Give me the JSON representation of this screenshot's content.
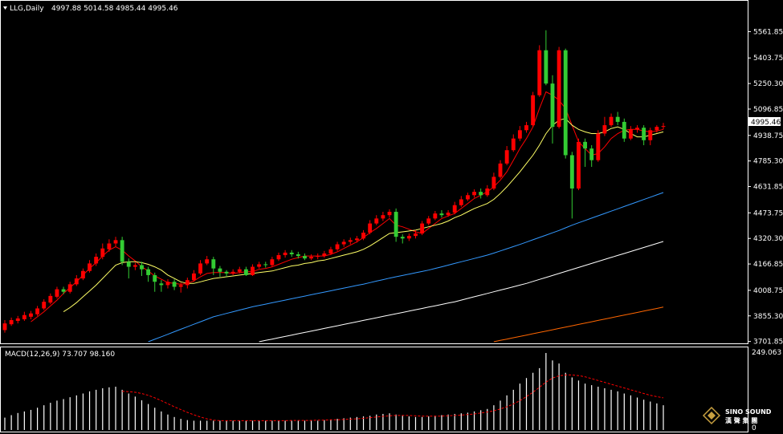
{
  "window": {
    "symbol_label": "LLG,Daily",
    "ohlc_label": "4997.88 5014.58 4985.44 4995.46",
    "macd_label": "MACD(12,26,9) 73.707 98.160",
    "macd_axis_top": "249.063",
    "macd_axis_bottom": "0",
    "brand": "SINO SOUND",
    "brand_sub": "漢 聲 集 團"
  },
  "colors": {
    "up": "#ff0000",
    "down": "#33cc33",
    "ma_red": "#ff0000",
    "ma_yellow": "#ffff66",
    "ma_blue": "#3399ff",
    "ma_white": "#ffffff",
    "ma_orange": "#ff6600",
    "macd_bar": "#ffffff",
    "macd_signal": "#ff0000",
    "current_price_bg": "#ffffff"
  },
  "chart_data": {
    "type": "candlestick",
    "y_ticks": [
      "5561.85",
      "5403.75",
      "5250.30",
      "5096.85",
      "4938.75",
      "4785.30",
      "4631.85",
      "4473.75",
      "4320.30",
      "4166.85",
      "4008.75",
      "3855.30",
      "3701.85"
    ],
    "ylim": [
      3700,
      5665
    ],
    "current_price": "4995.46",
    "candles": [
      [
        3770,
        3810,
        3755,
        3830
      ],
      [
        3805,
        3830,
        3795,
        3845
      ],
      [
        3825,
        3840,
        3810,
        3855
      ],
      [
        3835,
        3860,
        3825,
        3880
      ],
      [
        3850,
        3870,
        3835,
        3885
      ],
      [
        3865,
        3900,
        3855,
        3915
      ],
      [
        3900,
        3940,
        3890,
        3955
      ],
      [
        3935,
        3975,
        3925,
        3990
      ],
      [
        3970,
        4015,
        3960,
        4030
      ],
      [
        4015,
        4000,
        3985,
        4030
      ],
      [
        4000,
        4045,
        3990,
        4060
      ],
      [
        4045,
        4080,
        4035,
        4100
      ],
      [
        4080,
        4125,
        4070,
        4140
      ],
      [
        4125,
        4170,
        4115,
        4190
      ],
      [
        4170,
        4210,
        4155,
        4230
      ],
      [
        4210,
        4260,
        4195,
        4290
      ],
      [
        4255,
        4290,
        4240,
        4315
      ],
      [
        4290,
        4310,
        4270,
        4330
      ],
      [
        4310,
        4180,
        4160,
        4330
      ],
      [
        4180,
        4150,
        4080,
        4200
      ],
      [
        4150,
        4160,
        4130,
        4175
      ],
      [
        4160,
        4135,
        4095,
        4180
      ],
      [
        4135,
        4100,
        4060,
        4150
      ],
      [
        4100,
        4060,
        4000,
        4115
      ],
      [
        4050,
        4040,
        4000,
        4070
      ],
      [
        4040,
        4060,
        4020,
        4075
      ],
      [
        4060,
        4030,
        4010,
        4075
      ],
      [
        4030,
        4040,
        3995,
        4055
      ],
      [
        4040,
        4070,
        4020,
        4085
      ],
      [
        4070,
        4110,
        4060,
        4130
      ],
      [
        4110,
        4170,
        4100,
        4190
      ],
      [
        4170,
        4195,
        4160,
        4215
      ],
      [
        4195,
        4140,
        4100,
        4210
      ],
      [
        4140,
        4120,
        4090,
        4155
      ],
      [
        4120,
        4110,
        4090,
        4130
      ],
      [
        4110,
        4120,
        4100,
        4135
      ],
      [
        4120,
        4135,
        4110,
        4150
      ],
      [
        4135,
        4100,
        4095,
        4150
      ],
      [
        4100,
        4150,
        4095,
        4165
      ],
      [
        4150,
        4165,
        4140,
        4180
      ],
      [
        4165,
        4160,
        4145,
        4180
      ],
      [
        4160,
        4195,
        4150,
        4210
      ],
      [
        4195,
        4220,
        4185,
        4235
      ],
      [
        4220,
        4235,
        4205,
        4250
      ],
      [
        4235,
        4225,
        4210,
        4250
      ],
      [
        4225,
        4215,
        4200,
        4240
      ],
      [
        4215,
        4200,
        4190,
        4230
      ],
      [
        4200,
        4210,
        4190,
        4225
      ],
      [
        4210,
        4215,
        4195,
        4230
      ],
      [
        4215,
        4230,
        4205,
        4245
      ],
      [
        4230,
        4255,
        4220,
        4270
      ],
      [
        4255,
        4285,
        4245,
        4300
      ],
      [
        4285,
        4300,
        4270,
        4315
      ],
      [
        4300,
        4310,
        4285,
        4325
      ],
      [
        4310,
        4320,
        4295,
        4335
      ],
      [
        4320,
        4355,
        4310,
        4370
      ],
      [
        4355,
        4410,
        4345,
        4430
      ],
      [
        4410,
        4440,
        4400,
        4460
      ],
      [
        4440,
        4460,
        4425,
        4480
      ],
      [
        4460,
        4480,
        4445,
        4495
      ],
      [
        4480,
        4330,
        4300,
        4500
      ],
      [
        4330,
        4320,
        4290,
        4345
      ],
      [
        4320,
        4335,
        4305,
        4350
      ],
      [
        4335,
        4350,
        4320,
        4370
      ],
      [
        4350,
        4410,
        4340,
        4425
      ],
      [
        4410,
        4440,
        4400,
        4455
      ],
      [
        4440,
        4470,
        4430,
        4485
      ],
      [
        4470,
        4460,
        4445,
        4490
      ],
      [
        4460,
        4475,
        4450,
        4490
      ],
      [
        4475,
        4520,
        4465,
        4540
      ],
      [
        4520,
        4555,
        4510,
        4575
      ],
      [
        4555,
        4580,
        4545,
        4595
      ],
      [
        4580,
        4600,
        4565,
        4615
      ],
      [
        4600,
        4580,
        4560,
        4620
      ],
      [
        4580,
        4620,
        4570,
        4640
      ],
      [
        4620,
        4690,
        4610,
        4715
      ],
      [
        4690,
        4770,
        4680,
        4790
      ],
      [
        4770,
        4850,
        4760,
        4875
      ],
      [
        4850,
        4920,
        4840,
        4945
      ],
      [
        4920,
        4970,
        4905,
        4995
      ],
      [
        4970,
        5000,
        4955,
        5020
      ],
      [
        5000,
        5180,
        4990,
        5200
      ],
      [
        5180,
        5450,
        5170,
        5480
      ],
      [
        5450,
        5250,
        5240,
        5570
      ],
      [
        5250,
        4990,
        4890,
        5300
      ],
      [
        4990,
        5450,
        4980,
        5470
      ],
      [
        5450,
        4820,
        4800,
        5460
      ],
      [
        4820,
        4620,
        4440,
        4840
      ],
      [
        4620,
        4900,
        4610,
        4920
      ],
      [
        4900,
        4860,
        4750,
        4920
      ],
      [
        4860,
        4790,
        4750,
        4880
      ],
      [
        4790,
        4950,
        4780,
        4970
      ],
      [
        4950,
        5000,
        4935,
        5050
      ],
      [
        5000,
        5050,
        4990,
        5070
      ],
      [
        5050,
        5020,
        5000,
        5080
      ],
      [
        5020,
        4920,
        4900,
        5040
      ],
      [
        4920,
        4975,
        4910,
        4995
      ],
      [
        4975,
        4985,
        4955,
        5000
      ],
      [
        4985,
        4910,
        4880,
        5000
      ],
      [
        4910,
        4970,
        4880,
        4985
      ],
      [
        4970,
        4990,
        4955,
        5000
      ],
      [
        4990,
        4995,
        4975,
        5014
      ]
    ],
    "ma_series": [
      {
        "color": "ma_red",
        "values": [
          null,
          null,
          null,
          null,
          3820,
          3850,
          3880,
          3915,
          3950,
          3990,
          4025,
          4060,
          4100,
          4140,
          4175,
          4215,
          4250,
          4270,
          4250,
          4215,
          4185,
          4150,
          4125,
          4095,
          4075,
          4055,
          4050,
          4045,
          4050,
          4065,
          4090,
          4110,
          4115,
          4115,
          4115,
          4110,
          4115,
          4120,
          4120,
          4135,
          4140,
          4150,
          4165,
          4180,
          4195,
          4205,
          4215,
          4215,
          4215,
          4215,
          4225,
          4240,
          4260,
          4280,
          4300,
          4325,
          4355,
          4380,
          4410,
          4440,
          4400,
          4390,
          4375,
          4360,
          4350,
          4380,
          4410,
          4440,
          4455,
          4470,
          4500,
          4530,
          4560,
          4580,
          4600,
          4630,
          4670,
          4720,
          4790,
          4860,
          4920,
          4990,
          5100,
          5200,
          5180,
          5150,
          5100,
          5000,
          4900,
          4860,
          4820,
          4830,
          4870,
          4920,
          4950,
          4970,
          4975,
          4975,
          4965,
          4960,
          4965,
          4975
        ]
      },
      {
        "color": "ma_yellow",
        "values": [
          null,
          null,
          null,
          null,
          null,
          null,
          null,
          null,
          null,
          3880,
          3905,
          3935,
          3970,
          4005,
          4040,
          4080,
          4120,
          4160,
          4175,
          4180,
          4180,
          4175,
          4165,
          4150,
          4130,
          4100,
          4080,
          4060,
          4050,
          4050,
          4060,
          4070,
          4080,
          4085,
          4090,
          4095,
          4100,
          4105,
          4110,
          4115,
          4120,
          4125,
          4135,
          4145,
          4155,
          4160,
          4170,
          4175,
          4185,
          4190,
          4200,
          4210,
          4220,
          4230,
          4240,
          4255,
          4275,
          4300,
          4325,
          4350,
          4355,
          4360,
          4365,
          4370,
          4380,
          4390,
          4400,
          4410,
          4425,
          4445,
          4460,
          4480,
          4500,
          4515,
          4530,
          4555,
          4590,
          4630,
          4675,
          4720,
          4770,
          4820,
          4880,
          4950,
          5000,
          5030,
          5040,
          5000,
          4975,
          4960,
          4950,
          4950,
          4960,
          4980,
          4990,
          4975,
          4950,
          4930,
          4930,
          4940,
          4950,
          4960
        ]
      },
      {
        "color": "ma_blue",
        "values": [
          null,
          null,
          null,
          null,
          null,
          null,
          null,
          null,
          null,
          null,
          null,
          null,
          null,
          null,
          null,
          null,
          null,
          null,
          null,
          null,
          null,
          null,
          3700,
          3715,
          3730,
          3745,
          3760,
          3775,
          3790,
          3805,
          3820,
          3835,
          3850,
          3860,
          3870,
          3880,
          3890,
          3900,
          3910,
          3918,
          3926,
          3934,
          3942,
          3950,
          3958,
          3966,
          3974,
          3982,
          3990,
          3998,
          4006,
          4014,
          4022,
          4030,
          4038,
          4046,
          4055,
          4064,
          4073,
          4082,
          4090,
          4098,
          4106,
          4114,
          4122,
          4130,
          4140,
          4150,
          4160,
          4170,
          4180,
          4190,
          4200,
          4210,
          4220,
          4232,
          4245,
          4258,
          4271,
          4284,
          4298,
          4312,
          4326,
          4340,
          4354,
          4368,
          4384,
          4400,
          4414,
          4428,
          4442,
          4456,
          4470,
          4484,
          4498,
          4512,
          4526,
          4540,
          4554,
          4568,
          4582,
          4596
        ]
      },
      {
        "color": "ma_white",
        "values": [
          null,
          null,
          null,
          null,
          null,
          null,
          null,
          null,
          null,
          null,
          null,
          null,
          null,
          null,
          null,
          null,
          null,
          null,
          null,
          null,
          null,
          null,
          null,
          null,
          null,
          null,
          null,
          null,
          null,
          null,
          null,
          null,
          null,
          null,
          null,
          null,
          null,
          null,
          null,
          3700,
          3708,
          3716,
          3724,
          3732,
          3740,
          3748,
          3756,
          3764,
          3772,
          3780,
          3788,
          3796,
          3804,
          3812,
          3820,
          3828,
          3836,
          3844,
          3852,
          3860,
          3868,
          3876,
          3884,
          3892,
          3900,
          3908,
          3916,
          3924,
          3932,
          3940,
          3950,
          3960,
          3970,
          3980,
          3990,
          4000,
          4010,
          4020,
          4030,
          4040,
          4050,
          4062,
          4074,
          4086,
          4098,
          4110,
          4122,
          4134,
          4146,
          4158,
          4170,
          4182,
          4194,
          4206,
          4218,
          4230,
          4242,
          4254,
          4266,
          4278,
          4290,
          4302
        ]
      },
      {
        "color": "ma_orange",
        "values": [
          null,
          null,
          null,
          null,
          null,
          null,
          null,
          null,
          null,
          null,
          null,
          null,
          null,
          null,
          null,
          null,
          null,
          null,
          null,
          null,
          null,
          null,
          null,
          null,
          null,
          null,
          null,
          null,
          null,
          null,
          null,
          null,
          null,
          null,
          null,
          null,
          null,
          null,
          null,
          null,
          null,
          null,
          null,
          null,
          null,
          null,
          null,
          null,
          null,
          null,
          null,
          null,
          null,
          null,
          null,
          null,
          null,
          null,
          null,
          null,
          null,
          null,
          null,
          null,
          null,
          null,
          null,
          null,
          null,
          null,
          null,
          null,
          null,
          null,
          null,
          3700,
          3708,
          3716,
          3724,
          3732,
          3740,
          3748,
          3756,
          3764,
          3772,
          3780,
          3788,
          3796,
          3804,
          3812,
          3820,
          3828,
          3836,
          3844,
          3852,
          3860,
          3868,
          3876,
          3884,
          3892,
          3900,
          3908
        ]
      }
    ],
    "macd": {
      "ylim": [
        0,
        249.063
      ],
      "hist": [
        40,
        48,
        55,
        60,
        65,
        72,
        80,
        88,
        95,
        100,
        106,
        112,
        118,
        125,
        130,
        135,
        138,
        140,
        130,
        118,
        108,
        96,
        84,
        72,
        60,
        50,
        42,
        36,
        32,
        30,
        30,
        30,
        30,
        30,
        30,
        30,
        30,
        30,
        30,
        30,
        30,
        30,
        30,
        30,
        30,
        30,
        30,
        30,
        30,
        32,
        34,
        36,
        38,
        40,
        42,
        44,
        46,
        50,
        52,
        54,
        50,
        46,
        44,
        42,
        42,
        44,
        46,
        48,
        50,
        52,
        54,
        56,
        60,
        64,
        68,
        80,
        95,
        112,
        130,
        150,
        168,
        185,
        200,
        249,
        225,
        215,
        185,
        170,
        160,
        150,
        145,
        140,
        135,
        130,
        125,
        118,
        112,
        105,
        98,
        92,
        86,
        80
      ],
      "signal": [
        null,
        null,
        null,
        null,
        null,
        null,
        null,
        null,
        null,
        null,
        null,
        null,
        null,
        null,
        null,
        null,
        null,
        null,
        125,
        124,
        122,
        118,
        112,
        104,
        95,
        85,
        75,
        66,
        57,
        49,
        42,
        36,
        32,
        30,
        30,
        30,
        30,
        30,
        30,
        30,
        30,
        30,
        30,
        30,
        31,
        31,
        31,
        31,
        32,
        32,
        33,
        33,
        34,
        35,
        36,
        38,
        40,
        42,
        44,
        46,
        47,
        47,
        47,
        46,
        45,
        45,
        45,
        45,
        46,
        47,
        48,
        50,
        52,
        55,
        58,
        62,
        68,
        75,
        84,
        95,
        108,
        122,
        138,
        155,
        168,
        175,
        178,
        178,
        176,
        172,
        166,
        160,
        154,
        148,
        142,
        136,
        130,
        124,
        118,
        112,
        108,
        104
      ]
    }
  }
}
